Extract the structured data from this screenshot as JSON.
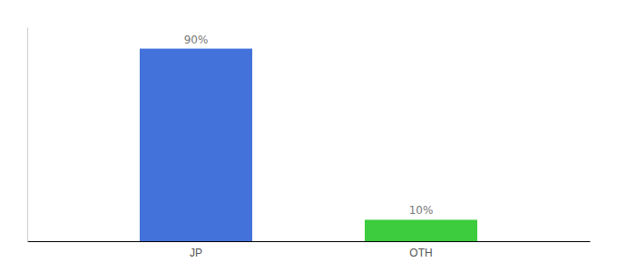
{
  "chart_data": {
    "type": "bar",
    "categories": [
      "JP",
      "OTH"
    ],
    "values": [
      90,
      10
    ],
    "value_labels": [
      "90%",
      "10%"
    ],
    "colors": [
      "#4472db",
      "#3dcc3d"
    ],
    "ylim": [
      0,
      100
    ],
    "data_labels": true,
    "tick_labels": "x"
  }
}
